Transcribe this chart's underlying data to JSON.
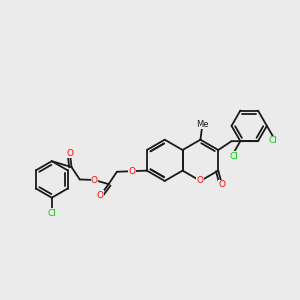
{
  "bg_color": "#ebebeb",
  "bond_color": "#1a1a1a",
  "bond_width": 1.3,
  "atom_colors": {
    "O": "#ff0000",
    "Cl": "#00cc00"
  },
  "font_size": 6.5,
  "title": ""
}
